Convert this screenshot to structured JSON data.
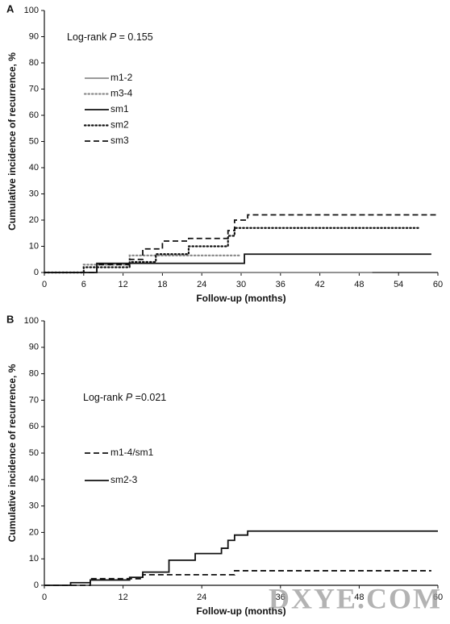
{
  "chart_data": [
    {
      "type": "step",
      "title": "A",
      "xlabel": "Follow-up (months)",
      "ylabel": "Cumulative incidence of recurrence, %",
      "annotation_label": "Log-rank",
      "annotation_stat": "P",
      "annotation_value": "= 0.155",
      "xlim": [
        0,
        60
      ],
      "xticks": [
        0,
        6,
        12,
        18,
        24,
        30,
        36,
        42,
        48,
        54,
        60
      ],
      "ylim": [
        0,
        100
      ],
      "yticks": [
        0,
        10,
        20,
        30,
        40,
        50,
        60,
        70,
        80,
        90,
        100
      ],
      "series": [
        {
          "name": "m1-2",
          "color": "#8c8c8c",
          "style": "solid",
          "x": [
            0,
            50
          ],
          "values": [
            0,
            0
          ]
        },
        {
          "name": "m3-4",
          "color": "#8c8c8c",
          "style": "dotted",
          "x": [
            0,
            6,
            13,
            30
          ],
          "values": [
            0,
            3,
            6.5,
            6.5
          ]
        },
        {
          "name": "sm1",
          "color": "#111111",
          "style": "solid",
          "x": [
            0,
            8,
            30.5,
            59
          ],
          "values": [
            0,
            3.5,
            7,
            7
          ]
        },
        {
          "name": "sm2",
          "color": "#111111",
          "style": "dotted",
          "x": [
            0,
            6,
            13,
            17,
            22,
            28,
            29,
            57
          ],
          "values": [
            0,
            2,
            4,
            7,
            10,
            14,
            17,
            17
          ]
        },
        {
          "name": "sm3",
          "color": "#111111",
          "style": "dashed",
          "x": [
            0,
            8,
            13,
            15,
            18,
            22,
            28,
            29,
            31,
            60
          ],
          "values": [
            0,
            3,
            5,
            9,
            12,
            13,
            16,
            20,
            22,
            22
          ]
        }
      ]
    },
    {
      "type": "step",
      "title": "B",
      "xlabel": "Follow-up (months)",
      "ylabel": "Cumulative incidence of recurrence, %",
      "annotation_label": "Log-rank",
      "annotation_stat": "P",
      "annotation_value": "=0.021",
      "xlim": [
        0,
        60
      ],
      "xticks": [
        0,
        12,
        24,
        36,
        48,
        60
      ],
      "ylim": [
        0,
        100
      ],
      "yticks": [
        0,
        10,
        20,
        30,
        40,
        50,
        60,
        70,
        80,
        90,
        100
      ],
      "series": [
        {
          "name": "m1-4/sm1",
          "color": "#111111",
          "style": "dashed",
          "x": [
            0,
            7,
            15,
            29,
            59
          ],
          "values": [
            0,
            2.5,
            4,
            5.5,
            5.5
          ]
        },
        {
          "name": "sm2-3",
          "color": "#111111",
          "style": "solid",
          "x": [
            0,
            4,
            7,
            13,
            15,
            19,
            23,
            27,
            28,
            29,
            31,
            60
          ],
          "values": [
            0,
            1,
            2,
            3,
            5,
            9.5,
            12,
            14,
            17,
            19,
            20.5,
            20.5
          ]
        }
      ]
    }
  ],
  "watermark": "DXYE.COM"
}
